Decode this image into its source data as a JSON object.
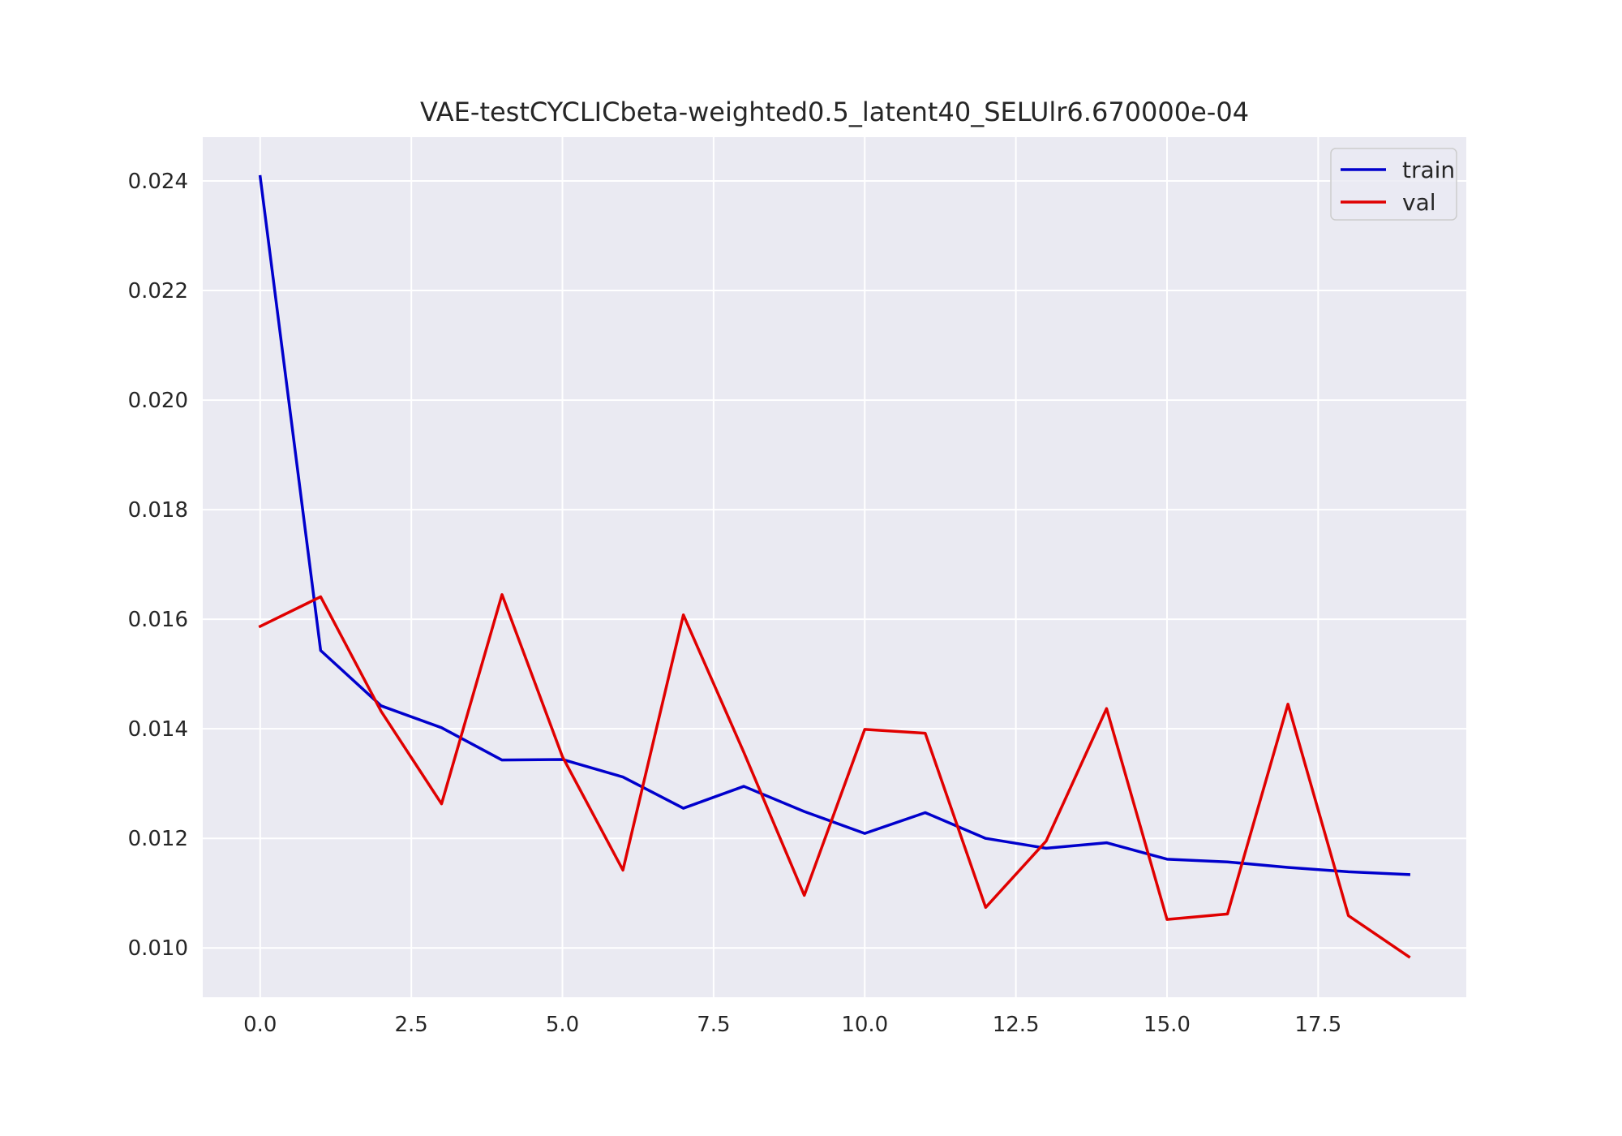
{
  "chart_data": {
    "type": "line",
    "title": "VAE-testCYCLICbeta-weighted0.5_latent40_SELUlr6.670000e-04",
    "xlabel": "",
    "ylabel": "",
    "xlim": [
      -0.95,
      19.95
    ],
    "ylim": [
      0.0091,
      0.0248
    ],
    "x_ticks": [
      0.0,
      2.5,
      5.0,
      7.5,
      10.0,
      12.5,
      15.0,
      17.5
    ],
    "x_tick_labels": [
      "0.0",
      "2.5",
      "5.0",
      "7.5",
      "10.0",
      "12.5",
      "15.0",
      "17.5"
    ],
    "y_ticks": [
      0.01,
      0.012,
      0.014,
      0.016,
      0.018,
      0.02,
      0.022,
      0.024
    ],
    "y_tick_labels": [
      "0.010",
      "0.012",
      "0.014",
      "0.016",
      "0.018",
      "0.020",
      "0.022",
      "0.024"
    ],
    "grid": true,
    "legend_position": "top-right",
    "x": [
      0,
      1,
      2,
      3,
      4,
      5,
      6,
      7,
      8,
      9,
      10,
      11,
      12,
      13,
      14,
      15,
      16,
      17,
      18,
      19
    ],
    "series": [
      {
        "name": "train",
        "color": "#0000cc",
        "values": [
          0.02408,
          0.01543,
          0.01442,
          0.01402,
          0.01343,
          0.01344,
          0.01312,
          0.01255,
          0.01295,
          0.01249,
          0.01209,
          0.01247,
          0.012,
          0.01182,
          0.01192,
          0.01162,
          0.01157,
          0.01147,
          0.01139,
          0.01134
        ]
      },
      {
        "name": "val",
        "color": "#e00000",
        "values": [
          0.01587,
          0.01641,
          0.01432,
          0.01263,
          0.01645,
          0.01349,
          0.01142,
          0.01608,
          0.01357,
          0.01096,
          0.01399,
          0.01392,
          0.01074,
          0.01195,
          0.01437,
          0.01052,
          0.01062,
          0.01445,
          0.01059,
          0.00984
        ]
      }
    ]
  },
  "colors": {
    "plot_background": "#eaeaf2",
    "grid": "#ffffff",
    "legend_frame": "#cccccc"
  }
}
